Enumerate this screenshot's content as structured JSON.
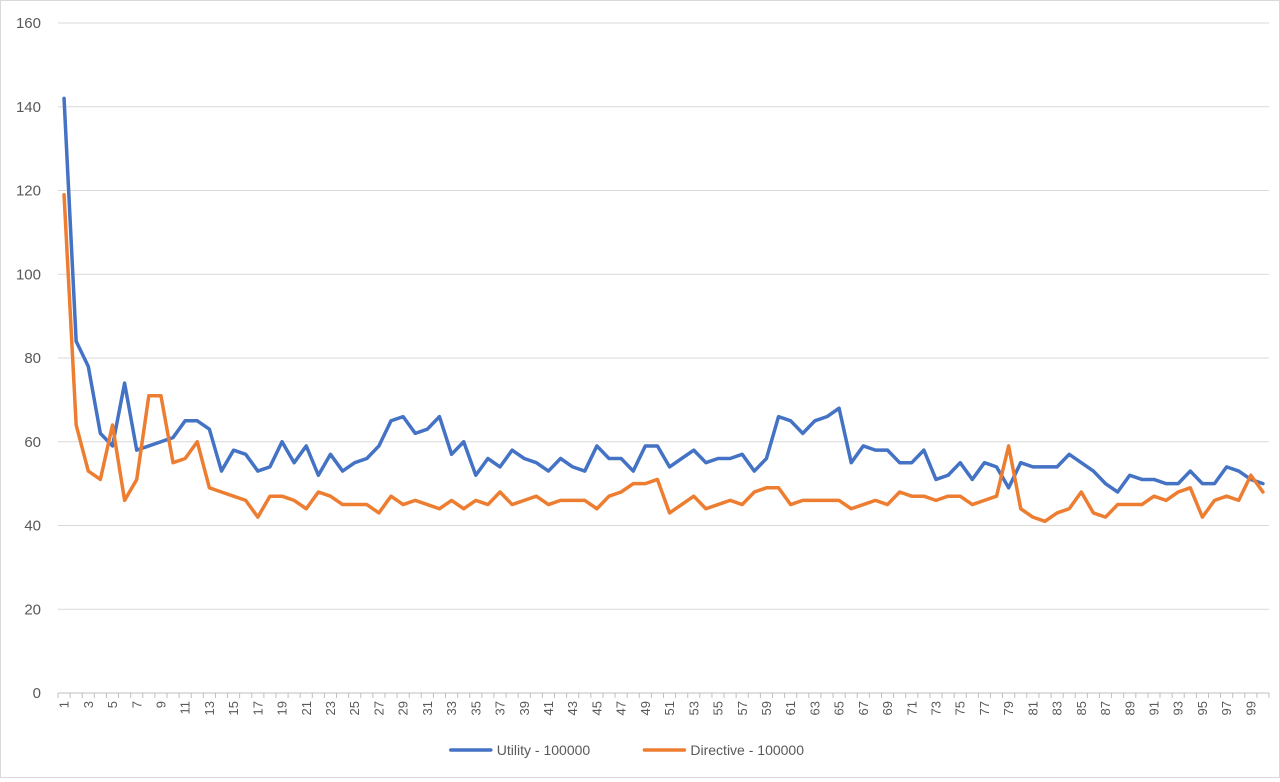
{
  "chart_data": {
    "type": "line",
    "title": "",
    "xlabel": "",
    "ylabel": "",
    "x": [
      1,
      2,
      3,
      4,
      5,
      6,
      7,
      8,
      9,
      10,
      11,
      12,
      13,
      14,
      15,
      16,
      17,
      18,
      19,
      20,
      21,
      22,
      23,
      24,
      25,
      26,
      27,
      28,
      29,
      30,
      31,
      32,
      33,
      34,
      35,
      36,
      37,
      38,
      39,
      40,
      41,
      42,
      43,
      44,
      45,
      46,
      47,
      48,
      49,
      50,
      51,
      52,
      53,
      54,
      55,
      56,
      57,
      58,
      59,
      60,
      61,
      62,
      63,
      64,
      65,
      66,
      67,
      68,
      69,
      70,
      71,
      72,
      73,
      74,
      75,
      76,
      77,
      78,
      79,
      80,
      81,
      82,
      83,
      84,
      85,
      86,
      87,
      88,
      89,
      90,
      91,
      92,
      93,
      94,
      95,
      96,
      97,
      98,
      99,
      100
    ],
    "x_tick_labels": [
      1,
      3,
      5,
      7,
      9,
      11,
      13,
      15,
      17,
      19,
      21,
      23,
      25,
      27,
      29,
      31,
      33,
      35,
      37,
      39,
      41,
      43,
      45,
      47,
      49,
      51,
      53,
      55,
      57,
      59,
      61,
      63,
      65,
      67,
      69,
      71,
      73,
      75,
      77,
      79,
      81,
      83,
      85,
      87,
      89,
      91,
      93,
      95,
      97,
      99
    ],
    "ylim": [
      0,
      160
    ],
    "y_ticks": [
      0,
      20,
      40,
      60,
      80,
      100,
      120,
      140,
      160
    ],
    "grid": true,
    "legend_position": "bottom",
    "series": [
      {
        "name": "Utility - 100000",
        "color": "#4472c4",
        "values": [
          142,
          84,
          78,
          62,
          59,
          74,
          58,
          59,
          60,
          61,
          65,
          65,
          63,
          53,
          58,
          57,
          53,
          54,
          60,
          55,
          59,
          52,
          57,
          53,
          55,
          56,
          59,
          65,
          66,
          62,
          63,
          66,
          57,
          60,
          52,
          56,
          54,
          58,
          56,
          55,
          53,
          56,
          54,
          53,
          59,
          56,
          56,
          53,
          59,
          59,
          54,
          56,
          58,
          55,
          56,
          56,
          57,
          53,
          56,
          66,
          65,
          62,
          65,
          66,
          68,
          55,
          59,
          58,
          58,
          55,
          55,
          58,
          51,
          52,
          55,
          51,
          55,
          54,
          49,
          55,
          54,
          54,
          54,
          57,
          55,
          53,
          50,
          48,
          52,
          51,
          51,
          50,
          50,
          53,
          50,
          50,
          54,
          53,
          51,
          50
        ]
      },
      {
        "name": "Directive - 100000",
        "color": "#ed7d31",
        "values": [
          119,
          64,
          53,
          51,
          64,
          46,
          51,
          71,
          71,
          55,
          56,
          60,
          49,
          48,
          47,
          46,
          42,
          47,
          47,
          46,
          44,
          48,
          47,
          45,
          45,
          45,
          43,
          47,
          45,
          46,
          45,
          44,
          46,
          44,
          46,
          45,
          48,
          45,
          46,
          47,
          45,
          46,
          46,
          46,
          44,
          47,
          48,
          50,
          50,
          51,
          43,
          45,
          47,
          44,
          45,
          46,
          45,
          48,
          49,
          49,
          45,
          46,
          46,
          46,
          46,
          44,
          45,
          46,
          45,
          48,
          47,
          47,
          46,
          47,
          47,
          45,
          46,
          47,
          59,
          44,
          42,
          41,
          43,
          44,
          48,
          43,
          42,
          45,
          45,
          45,
          47,
          46,
          48,
          49,
          42,
          46,
          47,
          46,
          52,
          48
        ]
      }
    ]
  }
}
